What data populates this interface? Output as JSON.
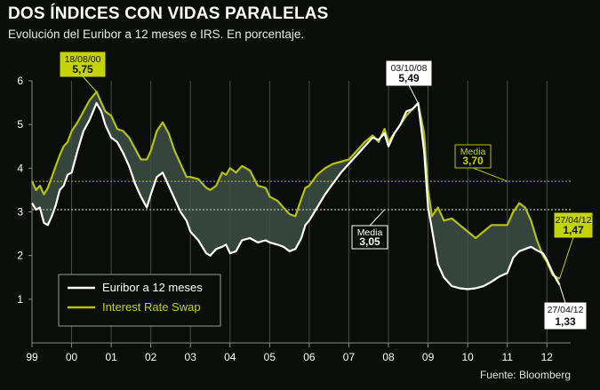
{
  "header": {
    "title": "DOS ÍNDICES CON VIDAS PARALELAS",
    "subtitle": "Evolución del Euribor a 12 meses e IRS. En porcentaje."
  },
  "source": "Fuente: Bloomberg",
  "colors": {
    "background": "#0b0d0a",
    "euribor": "#ffffff",
    "irs": "#b5c400",
    "fill": "#3d5046"
  },
  "chart_data": {
    "type": "line",
    "title": "DOS ÍNDICES CON VIDAS PARALELAS",
    "subtitle": "Evolución del Euribor a 12 meses e IRS. En porcentaje.",
    "xlabel": "",
    "ylabel": "",
    "xlim": [
      1999.0,
      2012.6
    ],
    "ylim": [
      0,
      6
    ],
    "y_ticks": [
      1,
      2,
      3,
      4,
      5,
      6
    ],
    "x_ticks": [
      {
        "value": 1999.0,
        "label": "99"
      },
      {
        "value": 2000.0,
        "label": "00"
      },
      {
        "value": 2001.0,
        "label": "01"
      },
      {
        "value": 2002.0,
        "label": "02"
      },
      {
        "value": 2003.0,
        "label": "03"
      },
      {
        "value": 2004.0,
        "label": "04"
      },
      {
        "value": 2005.0,
        "label": "05"
      },
      {
        "value": 2006.0,
        "label": "06"
      },
      {
        "value": 2007.0,
        "label": "07"
      },
      {
        "value": 2008.0,
        "label": "08"
      },
      {
        "value": 2009.0,
        "label": "09"
      },
      {
        "value": 2010.0,
        "label": "10"
      },
      {
        "value": 2011.0,
        "label": "11"
      },
      {
        "value": 2012.0,
        "label": "12"
      }
    ],
    "grid": "vertical",
    "legend_position": "bottom-left",
    "series": [
      {
        "name": "Euribor a 12 meses",
        "color": "#ffffff",
        "x": [
          1999.0,
          1999.1,
          1999.2,
          1999.3,
          1999.4,
          1999.5,
          1999.6,
          1999.7,
          1999.8,
          1999.9,
          2000.0,
          2000.15,
          2000.3,
          2000.45,
          2000.63,
          2000.75,
          2000.85,
          2001.0,
          2001.15,
          2001.3,
          2001.45,
          2001.6,
          2001.75,
          2001.9,
          2002.0,
          2002.15,
          2002.3,
          2002.45,
          2002.6,
          2002.75,
          2002.9,
          2003.0,
          2003.2,
          2003.4,
          2003.5,
          2003.65,
          2003.8,
          2003.9,
          2004.0,
          2004.15,
          2004.3,
          2004.5,
          2004.7,
          2004.9,
          2005.0,
          2005.2,
          2005.35,
          2005.5,
          2005.65,
          2005.8,
          2005.9,
          2006.0,
          2006.2,
          2006.4,
          2006.6,
          2006.8,
          2007.0,
          2007.2,
          2007.4,
          2007.6,
          2007.75,
          2007.9,
          2008.0,
          2008.15,
          2008.3,
          2008.45,
          2008.6,
          2008.75,
          2008.9,
          2009.0,
          2009.1,
          2009.25,
          2009.4,
          2009.6,
          2009.8,
          2010.0,
          2010.2,
          2010.4,
          2010.6,
          2010.8,
          2011.0,
          2011.15,
          2011.3,
          2011.45,
          2011.6,
          2011.75,
          2011.9,
          2012.0,
          2012.15,
          2012.32
        ],
        "values": [
          3.2,
          3.05,
          3.1,
          2.75,
          2.7,
          2.9,
          3.15,
          3.5,
          3.6,
          3.85,
          3.9,
          4.4,
          4.85,
          5.1,
          5.49,
          5.3,
          5.0,
          4.7,
          4.6,
          4.35,
          4.05,
          3.65,
          3.35,
          3.1,
          3.4,
          3.8,
          3.9,
          3.6,
          3.3,
          3.0,
          2.8,
          2.55,
          2.35,
          2.05,
          2.0,
          2.15,
          2.2,
          2.25,
          2.05,
          2.1,
          2.35,
          2.4,
          2.3,
          2.35,
          2.3,
          2.25,
          2.2,
          2.1,
          2.15,
          2.4,
          2.7,
          2.8,
          3.1,
          3.4,
          3.65,
          3.9,
          4.1,
          4.3,
          4.5,
          4.7,
          4.65,
          4.8,
          4.5,
          4.8,
          5.0,
          5.3,
          5.35,
          5.49,
          4.4,
          3.1,
          2.6,
          1.8,
          1.5,
          1.3,
          1.25,
          1.23,
          1.25,
          1.3,
          1.4,
          1.52,
          1.6,
          1.95,
          2.1,
          2.15,
          2.2,
          2.12,
          2.05,
          1.9,
          1.6,
          1.33
        ]
      },
      {
        "name": "Interest Rate Swap",
        "color": "#b5c400",
        "x": [
          1999.0,
          1999.1,
          1999.2,
          1999.3,
          1999.4,
          1999.5,
          1999.6,
          1999.7,
          1999.8,
          1999.9,
          2000.0,
          2000.15,
          2000.3,
          2000.45,
          2000.63,
          2000.75,
          2000.85,
          2001.0,
          2001.15,
          2001.3,
          2001.45,
          2001.6,
          2001.75,
          2001.9,
          2002.0,
          2002.15,
          2002.3,
          2002.45,
          2002.6,
          2002.75,
          2002.9,
          2003.0,
          2003.2,
          2003.4,
          2003.5,
          2003.65,
          2003.8,
          2003.9,
          2004.0,
          2004.15,
          2004.3,
          2004.5,
          2004.7,
          2004.9,
          2005.0,
          2005.2,
          2005.35,
          2005.5,
          2005.65,
          2005.8,
          2005.9,
          2006.0,
          2006.2,
          2006.4,
          2006.6,
          2006.8,
          2007.0,
          2007.2,
          2007.4,
          2007.6,
          2007.75,
          2007.9,
          2008.0,
          2008.15,
          2008.3,
          2008.45,
          2008.6,
          2008.75,
          2008.9,
          2009.0,
          2009.1,
          2009.25,
          2009.4,
          2009.6,
          2009.8,
          2010.0,
          2010.2,
          2010.4,
          2010.6,
          2010.8,
          2011.0,
          2011.15,
          2011.3,
          2011.45,
          2011.6,
          2011.75,
          2011.9,
          2012.0,
          2012.15,
          2012.32
        ],
        "values": [
          3.7,
          3.5,
          3.6,
          3.4,
          3.55,
          3.8,
          4.05,
          4.3,
          4.5,
          4.6,
          4.85,
          5.05,
          5.3,
          5.55,
          5.75,
          5.5,
          5.3,
          5.2,
          4.9,
          4.85,
          4.7,
          4.45,
          4.2,
          4.2,
          4.4,
          4.85,
          5.05,
          4.8,
          4.4,
          4.1,
          3.8,
          3.8,
          3.75,
          3.55,
          3.5,
          3.6,
          3.9,
          3.85,
          4.0,
          3.9,
          4.05,
          3.95,
          3.6,
          3.55,
          3.35,
          3.25,
          3.1,
          2.95,
          2.9,
          3.3,
          3.55,
          3.6,
          3.85,
          4.0,
          4.1,
          4.15,
          4.2,
          4.4,
          4.6,
          4.75,
          4.6,
          4.9,
          4.6,
          4.8,
          5.0,
          5.2,
          5.35,
          5.49,
          4.8,
          3.5,
          2.9,
          3.1,
          2.8,
          2.85,
          2.7,
          2.55,
          2.4,
          2.55,
          2.7,
          2.7,
          2.7,
          3.0,
          3.2,
          3.1,
          2.8,
          2.35,
          2.0,
          1.85,
          1.55,
          1.47
        ]
      }
    ],
    "reference_lines": [
      {
        "name": "Media Euribor",
        "value": 3.05,
        "color": "#dddddd"
      },
      {
        "name": "Media IRS",
        "value": 3.7,
        "color": "#b5c400"
      }
    ],
    "annotations": [
      {
        "id": "peak2000",
        "date": "18/08/00",
        "value": "5,75",
        "style": "green",
        "x": 2000.63,
        "y": 5.75
      },
      {
        "id": "peak2008",
        "date": "03/10/08",
        "value": "5,49",
        "style": "white",
        "x": 2008.75,
        "y": 5.49
      },
      {
        "id": "media_irs",
        "date": "Media",
        "value": "3,70",
        "style": "dark-green",
        "x": 2011.0,
        "y": 3.7
      },
      {
        "id": "media_euribor",
        "date": "Media",
        "value": "3,05",
        "style": "dark-white",
        "x": 2007.9,
        "y": 3.05
      },
      {
        "id": "end_irs",
        "date": "27/04/12",
        "value": "1,47",
        "style": "green",
        "x": 2012.32,
        "y": 1.47
      },
      {
        "id": "end_euribor",
        "date": "27/04/12",
        "value": "1,33",
        "style": "white",
        "x": 2012.32,
        "y": 1.33
      }
    ]
  }
}
